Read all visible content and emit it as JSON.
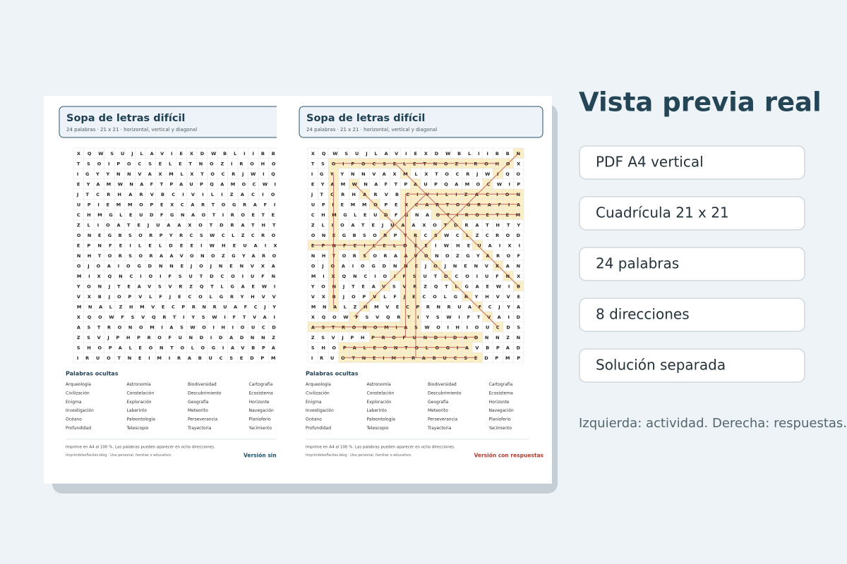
{
  "preview": {
    "grid": [
      "XQWSUJLAVIEXDWBLIIBBN",
      "TSOIPOCSELETNOZIROHOX",
      "IGYYNNVAXMLXTOCRJWIQO",
      "EYAMWNAFTPAUPQAMOCWIP",
      "JTCRHARVBCIVILIZACION",
      "UPIEMMOPEXCARTOGRAFIA",
      "CHMGLEUDFGNAOTIROETEM",
      "ZLIOATEJUAAXOTDRATHTY",
      "ONEGBSORPYRCSWCLZCROD",
      "EPNFEILELDEEIWHEUAIXI",
      "NHTORSORAAVONOZGYAROF",
      "OJOAIOGDNNEJOJNENVXAN",
      "MIXQNCIOIFSUTDCOIUFNX",
      "YONJTEAVSVRZQTLGAEWIB",
      "VXBJOPVLFJECOLGRYHVVE",
      "MNALZHMVECPRNRUAFCJYA",
      "XQOWFSVQRTIYSWIFTVAID",
      "ASTRONOMIASWOIHIOUCDS",
      "ZSVJPHPROFUNDIDADNNZN",
      "SHOPALEONTOLOGIAVBPAD",
      "IRUOTNEIMIRABUCSEDPMP"
    ],
    "title": "Sopa de letras difícil",
    "subtitle": "24 palabras · 21 x 21 · horizontal, vertical y diagonal",
    "words_heading": "Palabras ocultas",
    "words": [
      "Arqueología",
      "Astronomía",
      "Biodiversidad",
      "Cartografía",
      "Civilización",
      "Constelación",
      "Descubrimiento",
      "Ecosistema",
      "Enigma",
      "Exploración",
      "Geografía",
      "Horizonte",
      "Investigación",
      "Laberinto",
      "Meteorito",
      "Navegación",
      "Océano",
      "Paleontología",
      "Perseverancia",
      "Planisferio",
      "Profundidad",
      "Telescopio",
      "Trayectoria",
      "Yacimiento"
    ],
    "footer_note": "Imprime en A4 al 100 %. Las palabras pueden aparecer en ocho direcciones.",
    "footer_site": "ImprimiblesFaciles.blog · Uso personal, familiar o educativo.",
    "sheets": [
      {
        "label": "Versión sin"
      },
      {
        "label": "Versión con respuestas"
      }
    ]
  },
  "panel": {
    "title": "Vista previa real",
    "features": [
      "PDF A4 vertical",
      "Cuadrícula 21 x 21",
      "24 palabras",
      "8 direcciones",
      "Solución separada"
    ],
    "caption": "Izquierda: actividad. Derecha: respuestas."
  }
}
